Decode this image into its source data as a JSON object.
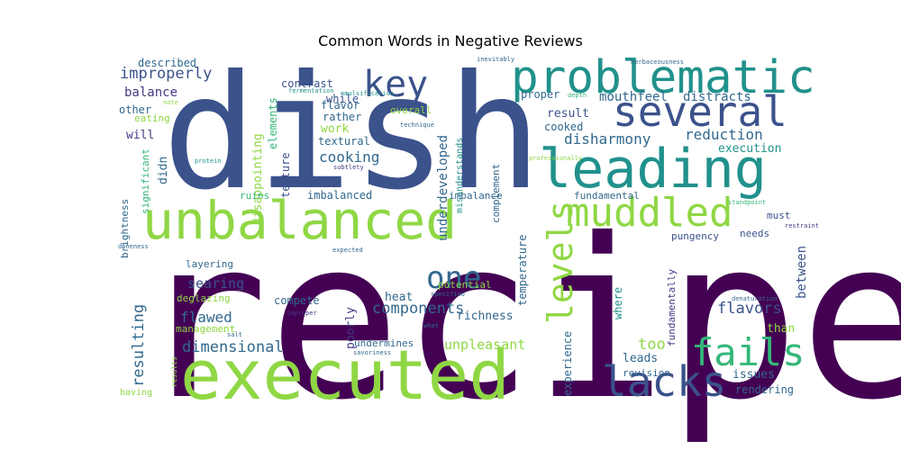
{
  "chart_data": {
    "type": "wordcloud",
    "title": "Common Words in Negative Reviews",
    "xlabel": "",
    "ylabel": "",
    "grid": false,
    "background": "#ffffff",
    "words": [
      {
        "text": "recipe",
        "weight": 100,
        "color": "#440154"
      },
      {
        "text": "dish",
        "weight": 92,
        "color": "#3b528b"
      },
      {
        "text": "executed",
        "weight": 54,
        "color": "#8fd744"
      },
      {
        "text": "unbalanced",
        "weight": 42,
        "color": "#8fd744"
      },
      {
        "text": "leading",
        "weight": 40,
        "color": "#21918c"
      },
      {
        "text": "problematic",
        "weight": 33,
        "color": "#21918c"
      },
      {
        "text": "several",
        "weight": 30,
        "color": "#3b528b"
      },
      {
        "text": "lacks",
        "weight": 30,
        "color": "#3b528b"
      },
      {
        "text": "muddled",
        "weight": 28,
        "color": "#8fd744"
      },
      {
        "text": "fails",
        "weight": 27,
        "color": "#35b779"
      },
      {
        "text": "levels",
        "weight": 25,
        "color": "#8fd744"
      },
      {
        "text": "key",
        "weight": 24,
        "color": "#3b528b"
      },
      {
        "text": "one",
        "weight": 22,
        "color": "#31688e"
      },
      {
        "text": "components",
        "weight": 11,
        "color": "#31688e"
      },
      {
        "text": "improperly",
        "weight": 11,
        "color": "#3b528b"
      },
      {
        "text": "dimensional",
        "weight": 11,
        "color": "#31688e"
      },
      {
        "text": "flavors",
        "weight": 11,
        "color": "#3b528b"
      },
      {
        "text": "resulting",
        "weight": 11,
        "color": "#31688e"
      },
      {
        "text": "disharmony",
        "weight": 10,
        "color": "#31688e"
      },
      {
        "text": "reduction",
        "weight": 10,
        "color": "#31688e"
      },
      {
        "text": "cooking",
        "weight": 10,
        "color": "#31688e"
      },
      {
        "text": "flawed",
        "weight": 10,
        "color": "#31688e"
      },
      {
        "text": "searing",
        "weight": 10,
        "color": "#3b528b"
      },
      {
        "text": "unpleasant",
        "weight": 10,
        "color": "#8fd744"
      },
      {
        "text": "mouthfeel",
        "weight": 9,
        "color": "#31688e"
      },
      {
        "text": "distracts",
        "weight": 9,
        "color": "#31688e"
      },
      {
        "text": "too",
        "weight": 10,
        "color": "#8fd744"
      },
      {
        "text": "underdeveloped",
        "weight": 9,
        "color": "#31688e"
      },
      {
        "text": "between",
        "weight": 9,
        "color": "#3b528b"
      },
      {
        "text": "balance",
        "weight": 8,
        "color": "#443a83"
      },
      {
        "text": "disappointing",
        "weight": 8,
        "color": "#8fd744"
      },
      {
        "text": "poorly",
        "weight": 8,
        "color": "#443a83"
      },
      {
        "text": "execution",
        "weight": 8,
        "color": "#21918c"
      },
      {
        "text": "result",
        "weight": 8,
        "color": "#3b528b"
      },
      {
        "text": "richness",
        "weight": 8,
        "color": "#31688e"
      },
      {
        "text": "heat",
        "weight": 8,
        "color": "#31688e"
      },
      {
        "text": "than",
        "weight": 8,
        "color": "#8fd744"
      },
      {
        "text": "issues",
        "weight": 7,
        "color": "#31688e"
      },
      {
        "text": "leads",
        "weight": 7,
        "color": "#31688e"
      },
      {
        "text": "imbalanced",
        "weight": 7,
        "color": "#31688e"
      },
      {
        "text": "flavor",
        "weight": 7,
        "color": "#31688e"
      },
      {
        "text": "will",
        "weight": 7,
        "color": "#443a83"
      },
      {
        "text": "work",
        "weight": 7,
        "color": "#8fd744"
      },
      {
        "text": "rather",
        "weight": 7,
        "color": "#31688e"
      },
      {
        "text": "other",
        "weight": 7,
        "color": "#31688e"
      },
      {
        "text": "cooked",
        "weight": 7,
        "color": "#31688e"
      },
      {
        "text": "experience",
        "weight": 7,
        "color": "#31688e"
      },
      {
        "text": "fundamentally",
        "weight": 7,
        "color": "#443a83"
      },
      {
        "text": "where",
        "weight": 7,
        "color": "#21918c"
      },
      {
        "text": "compete",
        "weight": 7,
        "color": "#31688e"
      },
      {
        "text": "textural",
        "weight": 7,
        "color": "#31688e"
      },
      {
        "text": "temperature",
        "weight": 6,
        "color": "#31688e"
      },
      {
        "text": "didn",
        "weight": 7,
        "color": "#31688e"
      },
      {
        "text": "texture",
        "weight": 7,
        "color": "#3b528b"
      },
      {
        "text": "elements",
        "weight": 7,
        "color": "#35b779"
      },
      {
        "text": "contrast",
        "weight": 7,
        "color": "#3b528b"
      },
      {
        "text": "while",
        "weight": 7,
        "color": "#3b528b"
      },
      {
        "text": "described",
        "weight": 7,
        "color": "#31688e"
      },
      {
        "text": "proper",
        "weight": 7,
        "color": "#31688e"
      },
      {
        "text": "rendering",
        "weight": 7,
        "color": "#31688e"
      },
      {
        "text": "significant",
        "weight": 6,
        "color": "#35b779"
      },
      {
        "text": "brightness",
        "weight": 6,
        "color": "#31688e"
      },
      {
        "text": "misunderstands",
        "weight": 6,
        "color": "#21918c"
      },
      {
        "text": "complement",
        "weight": 6,
        "color": "#31688e"
      },
      {
        "text": "imbalance",
        "weight": 6,
        "color": "#31688e"
      },
      {
        "text": "fundamental",
        "weight": 6,
        "color": "#31688e"
      },
      {
        "text": "must",
        "weight": 6,
        "color": "#3b528b"
      },
      {
        "text": "needs",
        "weight": 6,
        "color": "#3b528b"
      },
      {
        "text": "pungency",
        "weight": 6,
        "color": "#3b528b"
      },
      {
        "text": "potential",
        "weight": 6,
        "color": "#8fd744"
      },
      {
        "text": "undermines",
        "weight": 6,
        "color": "#31688e"
      },
      {
        "text": "layering",
        "weight": 6,
        "color": "#31688e"
      },
      {
        "text": "deglazing",
        "weight": 6,
        "color": "#8fd744"
      },
      {
        "text": "management",
        "weight": 6,
        "color": "#8fd744"
      },
      {
        "text": "ruins",
        "weight": 6,
        "color": "#35b779"
      },
      {
        "text": "eating",
        "weight": 6,
        "color": "#8fd744"
      },
      {
        "text": "overall",
        "weight": 6,
        "color": "#8fd744"
      },
      {
        "text": "revision",
        "weight": 6,
        "color": "#31688e"
      },
      {
        "text": "having",
        "weight": 6,
        "color": "#8fd744"
      },
      {
        "text": "results",
        "weight": 5,
        "color": "#8fd744"
      },
      {
        "text": "fermentation",
        "weight": 4,
        "color": "#21918c"
      },
      {
        "text": "emulsification",
        "weight": 4,
        "color": "#21918c"
      },
      {
        "text": "technique",
        "weight": 4,
        "color": "#31688e"
      },
      {
        "text": "subtlety",
        "weight": 4,
        "color": "#443a83"
      },
      {
        "text": "inevitably",
        "weight": 4,
        "color": "#31688e"
      },
      {
        "text": "herbaceousness",
        "weight": 4,
        "color": "#31688e"
      },
      {
        "text": "depth",
        "weight": 4,
        "color": "#35b779"
      },
      {
        "text": "professionally",
        "weight": 4,
        "color": "#8fd744"
      },
      {
        "text": "standpoint",
        "weight": 4,
        "color": "#35b779"
      },
      {
        "text": "restraint",
        "weight": 4,
        "color": "#443a83"
      },
      {
        "text": "denaturation",
        "weight": 4,
        "color": "#31688e"
      },
      {
        "text": "specified",
        "weight": 4,
        "color": "#31688e"
      },
      {
        "text": "improper",
        "weight": 4,
        "color": "#443a83"
      },
      {
        "text": "savoriness",
        "weight": 4,
        "color": "#31688e"
      },
      {
        "text": "salt",
        "weight": 4,
        "color": "#31688e"
      },
      {
        "text": "what",
        "weight": 4,
        "color": "#31688e"
      },
      {
        "text": "note",
        "weight": 4,
        "color": "#8fd744"
      },
      {
        "text": "protein",
        "weight": 4,
        "color": "#21918c"
      },
      {
        "text": "doneness",
        "weight": 4,
        "color": "#31688e"
      },
      {
        "text": "expected",
        "weight": 4,
        "color": "#31688e"
      }
    ]
  }
}
